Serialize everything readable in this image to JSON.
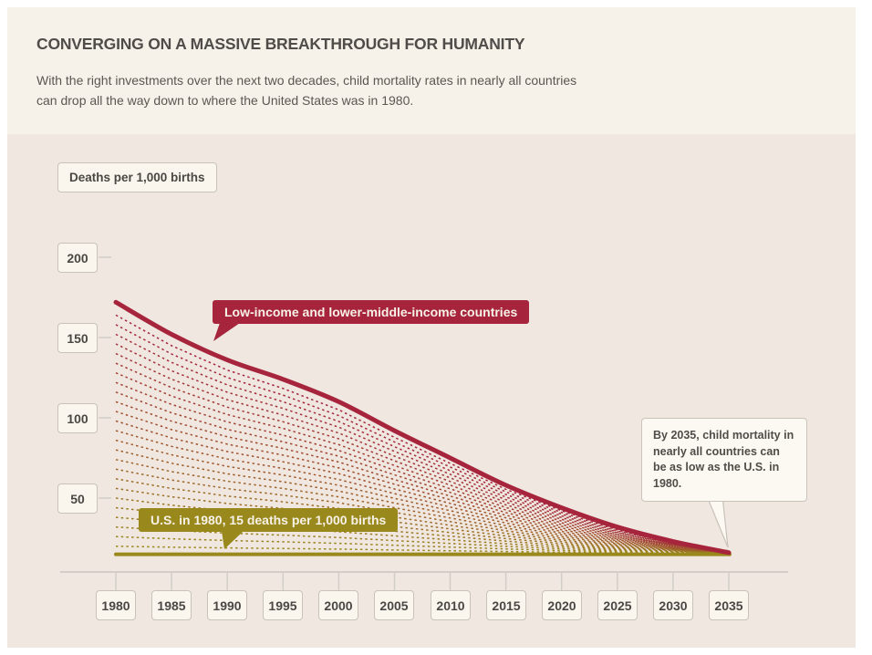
{
  "header": {
    "title": "CONVERGING ON A MASSIVE BREAKTHROUGH FOR HUMANITY",
    "subtitle": "With the right investments over the next two decades, child mortality rates in nearly all countries can drop all the way down to where the United States was in 1980."
  },
  "chart_data": {
    "type": "line",
    "y_axis_label": "Deaths per 1,000 births",
    "y_ticks": [
      200,
      150,
      100,
      50
    ],
    "x_ticks": [
      1980,
      1985,
      1990,
      1995,
      2000,
      2005,
      2010,
      2015,
      2020,
      2025,
      2030,
      2035
    ],
    "ylim": [
      0,
      215
    ],
    "xlim": [
      1980,
      2035
    ],
    "grid": false,
    "legend_position": "inline-flags",
    "series": [
      {
        "name": "Low-income and lower-middle-income countries",
        "color": "#a6253c",
        "line_style": "solid",
        "x": [
          1980,
          1985,
          1990,
          1995,
          2000,
          2005,
          2010,
          2015,
          2020,
          2025,
          2030,
          2035
        ],
        "values": [
          172,
          152,
          136,
          124,
          110,
          92,
          75,
          58,
          44,
          32,
          23,
          16
        ]
      },
      {
        "name": "U.S. in 1980 baseline",
        "color": "#99891c",
        "line_style": "solid",
        "x": [
          1980,
          2035
        ],
        "values": [
          15,
          15
        ]
      }
    ],
    "projection_fan": {
      "description": "Dotted per-country projection lines converging from their 1980 levels down to the U.S. 1980 level by 2035",
      "line_count": 25,
      "start_value_max": 164,
      "start_value_min": 20,
      "converge_year": 2035,
      "converge_value": 15.5,
      "color_top": "#a6253c",
      "color_bottom": "#99891c",
      "style": "dotted"
    },
    "annotations": [
      {
        "type": "series-flag",
        "color": "#a6253c",
        "text": "Low-income and lower-middle-income countries"
      },
      {
        "type": "series-flag",
        "color": "#99891c",
        "text": "U.S. in 1980, 15 deaths per 1,000 births"
      },
      {
        "type": "callout",
        "text": "By 2035, child mortality in nearly all countries can be as low as the U.S. in 1980."
      }
    ]
  },
  "colors": {
    "page_bg": "#ffffff",
    "header_bg": "#f7f2e9",
    "chart_bg": "#f0e7e1",
    "box_bg": "#faf6ee",
    "box_border": "#c8c2b8",
    "axis_line": "#d2cec7",
    "text_dark": "#4f4c49",
    "red": "#a6253c",
    "olive": "#99891c",
    "callout_bg": "#fcf9f2"
  }
}
